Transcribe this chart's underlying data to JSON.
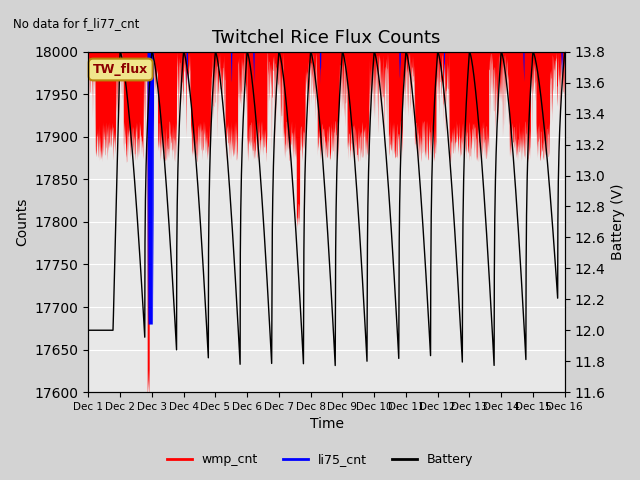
{
  "title": "Twitchel Rice Flux Counts",
  "no_data_label": "No data for f_li77_cnt",
  "xlabel": "Time",
  "ylabel_left": "Counts",
  "ylabel_right": "Battery (V)",
  "ylim_left": [
    17600,
    18000
  ],
  "ylim_right": [
    11.6,
    13.8
  ],
  "yticks_left": [
    17600,
    17650,
    17700,
    17750,
    17800,
    17850,
    17900,
    17950,
    18000
  ],
  "yticks_right": [
    11.6,
    11.8,
    12.0,
    12.2,
    12.4,
    12.6,
    12.8,
    13.0,
    13.2,
    13.4,
    13.6,
    13.8
  ],
  "xtick_labels": [
    "Dec 1",
    "Dec 2",
    "Dec 3",
    "Dec 4",
    "Dec 5",
    "Dec 6",
    "Dec 7",
    "Dec 8",
    "Dec 9",
    "Dec 10",
    "Dec 11",
    "Dec 12",
    "Dec 13",
    "Dec 14",
    "Dec 15",
    "Dec 16"
  ],
  "legend_entries": [
    "wmp_cnt",
    "li75_cnt",
    "Battery"
  ],
  "legend_colors": [
    "red",
    "blue",
    "black"
  ],
  "tw_flux_label": "TW_flux",
  "tw_flux_bbox_color": "#f0e68c",
  "background_color": "#d3d3d3",
  "plot_bg_color": "#e8e8e8",
  "grid_color": "white",
  "wmp_color": "red",
  "li75_color": "blue",
  "battery_color": "black",
  "num_days": 15,
  "figsize": [
    6.4,
    4.8
  ],
  "dpi": 100
}
